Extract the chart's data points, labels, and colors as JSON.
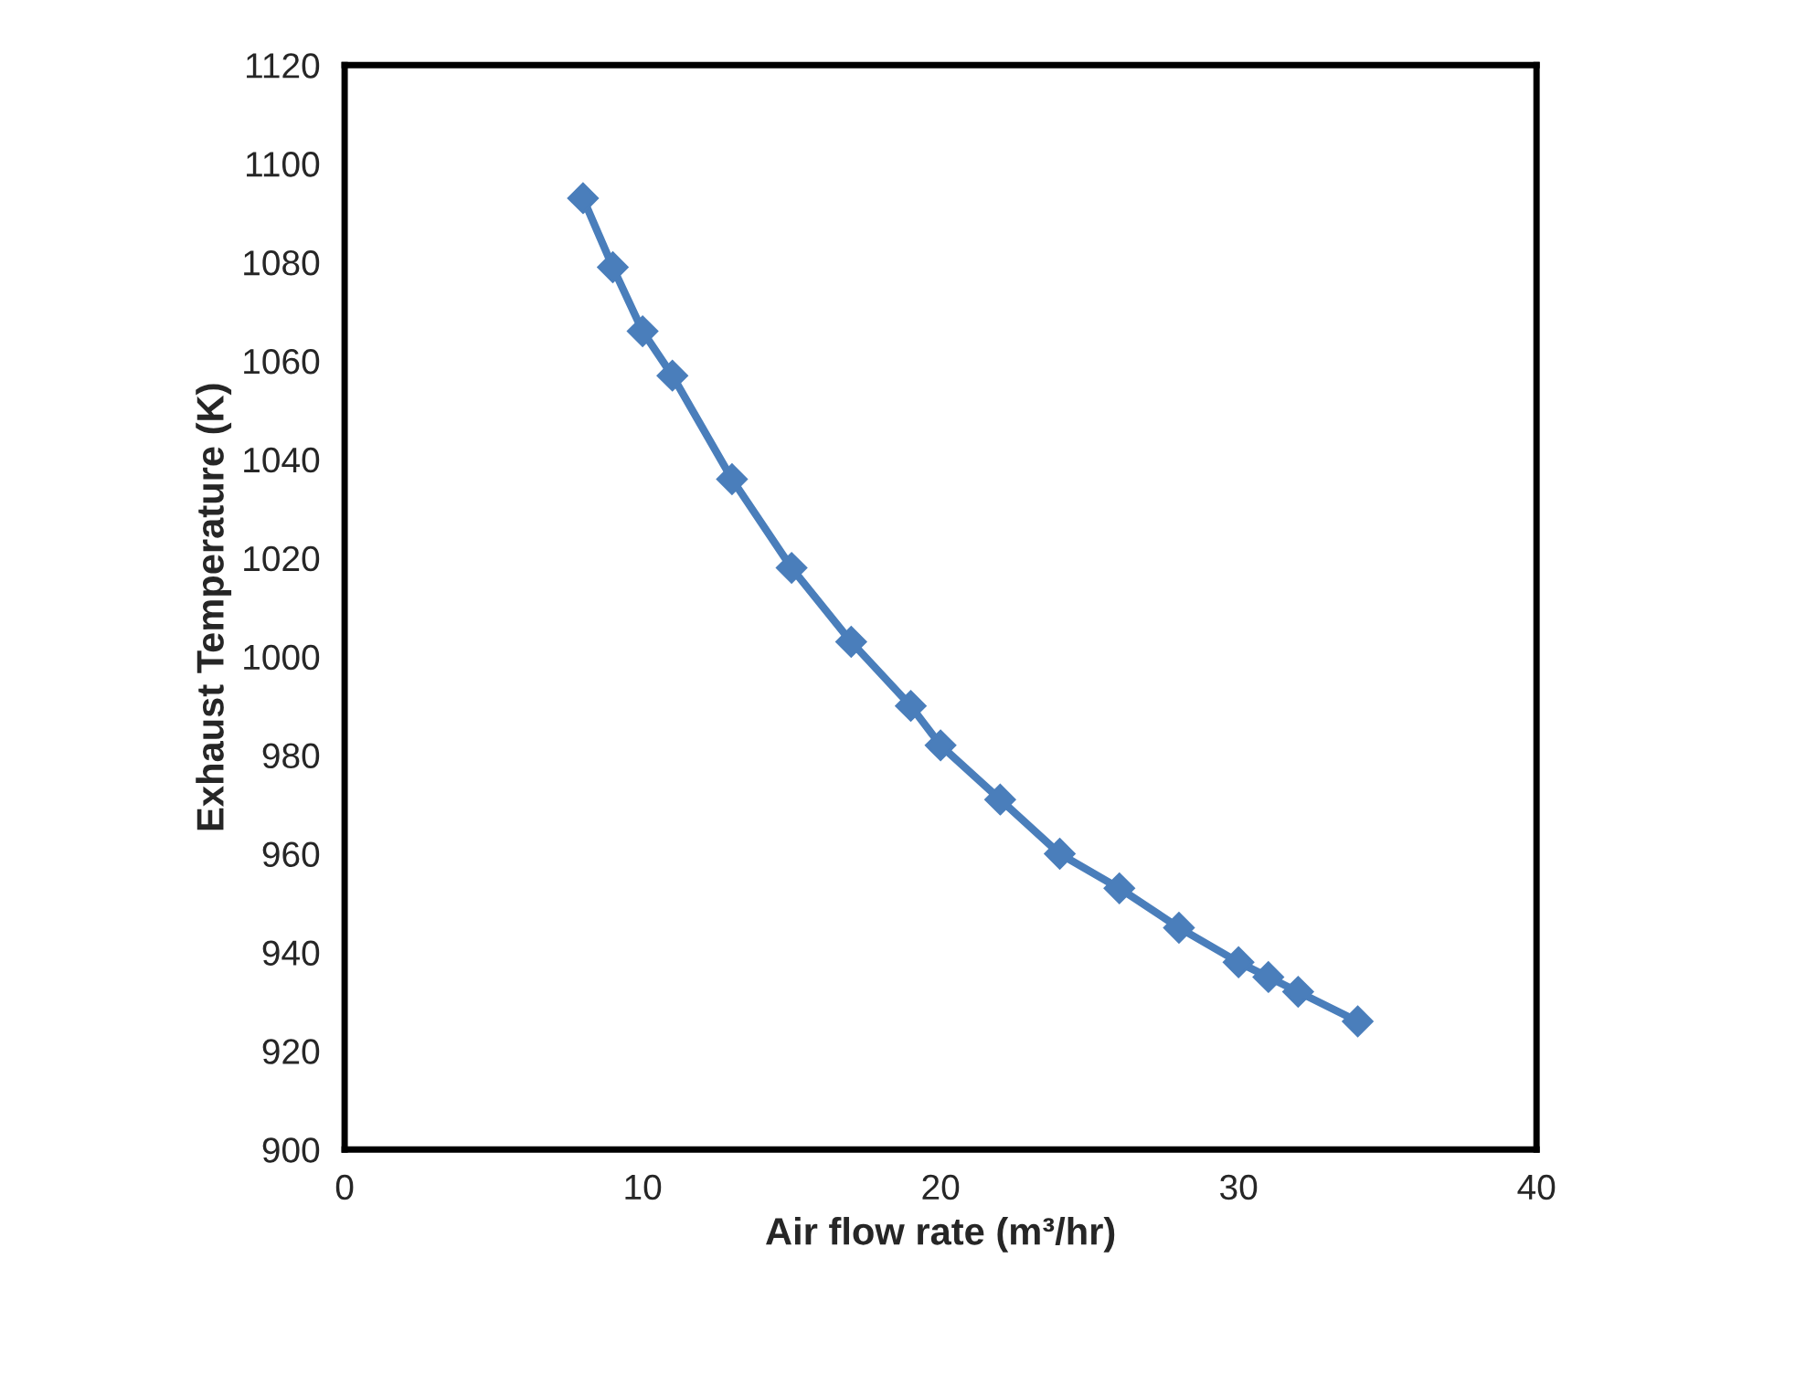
{
  "chart_data": {
    "type": "line",
    "xlabel": "Air flow rate (m³/hr)",
    "ylabel": "Exhaust Temperature (K)",
    "x": [
      8,
      9,
      10,
      11,
      13,
      15,
      17,
      19,
      20,
      22,
      24,
      26,
      28,
      30,
      31,
      32,
      34
    ],
    "series": [
      {
        "color": "#4a7ebb",
        "values": [
          1093,
          1079,
          1066,
          1057,
          1036,
          1018,
          1003,
          990,
          982,
          971,
          960,
          953,
          945,
          938,
          935,
          932,
          926
        ]
      }
    ],
    "xlim": [
      0,
      40
    ],
    "xticks": [
      0,
      10,
      20,
      30,
      40
    ],
    "ylim": [
      900,
      1120
    ],
    "yticks": [
      900,
      920,
      940,
      960,
      980,
      1000,
      1020,
      1040,
      1060,
      1080,
      1100,
      1120
    ],
    "marker": "diamond",
    "line_style": "solid",
    "grid": false,
    "legend": false
  }
}
